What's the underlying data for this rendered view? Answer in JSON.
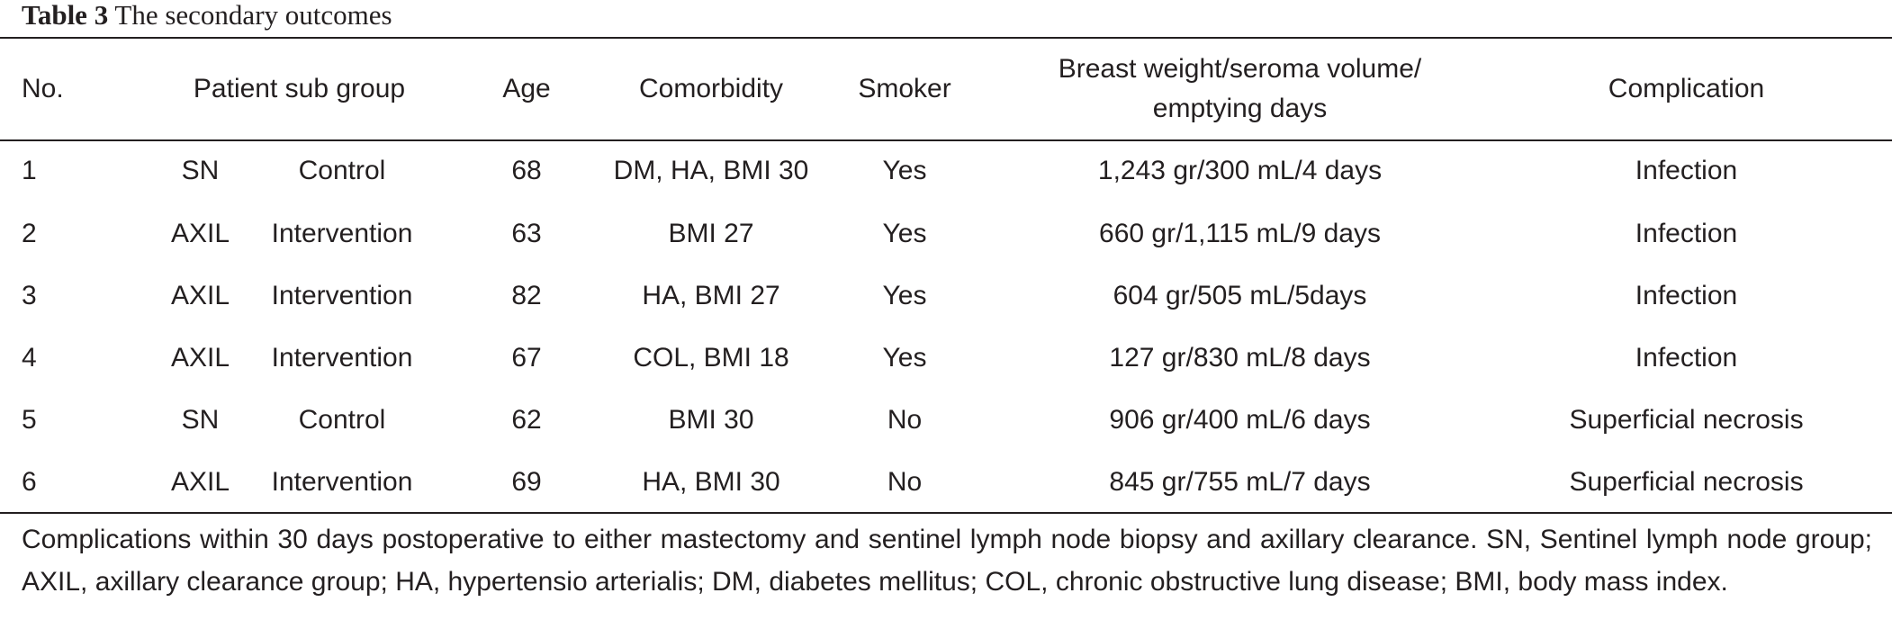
{
  "caption": {
    "label": "Table 3",
    "title": "The secondary outcomes"
  },
  "header": {
    "no": "No.",
    "patient_sub_group": "Patient sub group",
    "age": "Age",
    "comorbidity": "Comorbidity",
    "smoker": "Smoker",
    "bw_line1": "Breast weight/seroma volume/",
    "bw_line2": "emptying days",
    "complication": "Complication"
  },
  "rows": [
    {
      "no": "1",
      "group": "SN",
      "arm": "Control",
      "age": "68",
      "comorbidity": "DM, HA, BMI 30",
      "smoker": "Yes",
      "breast": "1,243 gr/300 mL/4 days",
      "complication": "Infection"
    },
    {
      "no": "2",
      "group": "AXIL",
      "arm": "Intervention",
      "age": "63",
      "comorbidity": "BMI 27",
      "smoker": "Yes",
      "breast": "660 gr/1,115 mL/9 days",
      "complication": "Infection"
    },
    {
      "no": "3",
      "group": "AXIL",
      "arm": "Intervention",
      "age": "82",
      "comorbidity": "HA, BMI 27",
      "smoker": "Yes",
      "breast": "604 gr/505 mL/5days",
      "complication": "Infection"
    },
    {
      "no": "4",
      "group": "AXIL",
      "arm": "Intervention",
      "age": "67",
      "comorbidity": "COL, BMI 18",
      "smoker": "Yes",
      "breast": "127 gr/830 mL/8 days",
      "complication": "Infection"
    },
    {
      "no": "5",
      "group": "SN",
      "arm": "Control",
      "age": "62",
      "comorbidity": "BMI 30",
      "smoker": "No",
      "breast": "906 gr/400 mL/6 days",
      "complication": "Superficial necrosis"
    },
    {
      "no": "6",
      "group": "AXIL",
      "arm": "Intervention",
      "age": "69",
      "comorbidity": "HA, BMI 30",
      "smoker": "No",
      "breast": "845 gr/755 mL/7 days",
      "complication": "Superficial necrosis"
    }
  ],
  "footnote": "Complications within 30 days postoperative to either mastectomy and sentinel lymph node biopsy and axillary clearance. SN, Sentinel lymph node group; AXIL, axillary clearance group; HA, hypertensio arterialis; DM, diabetes mellitus; COL, chronic obstructive lung disease; BMI, body mass index."
}
